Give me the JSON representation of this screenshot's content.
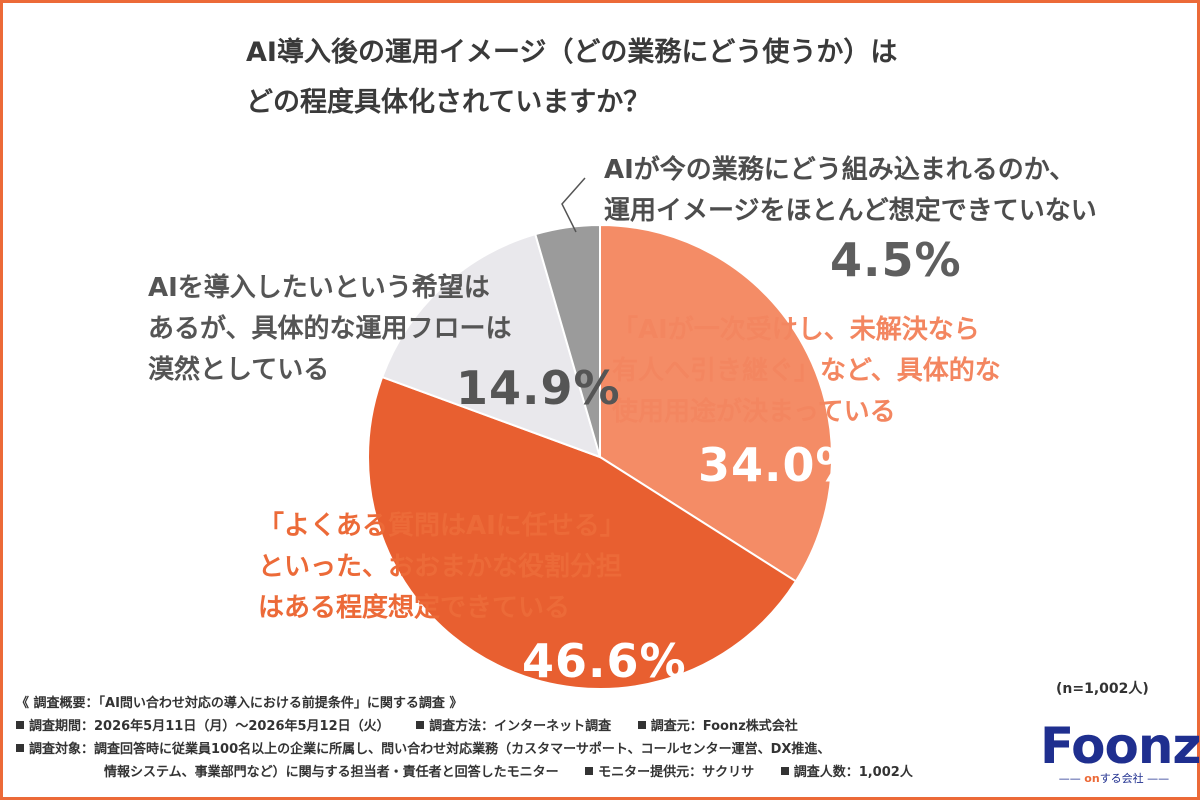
{
  "chart_data": {
    "type": "pie",
    "title_lines": [
      "AI導入後の運用イメージ（どの業務にどう使うか）は",
      "どの程度具体化されていますか？"
    ],
    "slices": [
      {
        "label_lines": [
          "「AIが一次受けし、未解決なら",
          "有人へ引き継ぐ」など、具体的な",
          "使用用途が決まっている"
        ],
        "value": 34.0,
        "value_label": "34.0%",
        "color": "#f48c66"
      },
      {
        "label_lines": [
          "「よくある質問はAIに任せる」",
          "といった、おおまかな役割分担",
          "はある程度想定できている"
        ],
        "value": 46.6,
        "value_label": "46.6%",
        "color": "#e85f30"
      },
      {
        "label_lines": [
          "AIを導入したいという希望は",
          "あるが、具体的な運用フローは",
          "漠然としている"
        ],
        "value": 14.9,
        "value_label": "14.9%",
        "color": "#e9e8ec"
      },
      {
        "label_lines": [
          "AIが今の業務にどう組み込まれるのか、",
          "運用イメージをほとんど想定できていない"
        ],
        "value": 4.5,
        "value_label": "4.5%",
        "color": "#9b9b9b"
      }
    ],
    "n_note": "(n=1,002人)"
  },
  "footer": {
    "overview": "《 調査概要：「AI問い合わせ対応の導入における前提条件」に関する調査 》",
    "period": "調査期間：2026年5月11日（月）～2026年5月12日（火）",
    "method": "調査方法：インターネット調査",
    "source": "調査元：Foonz株式会社",
    "target_1": "調査対象：調査回答時に従業員100名以上の企業に所属し、問い合わせ対応業務（カスタマーサポート、コールセンター運営、DX推進、",
    "target_2": "情報システム、事業部門など）に関与する担当者・責任者と回答したモニター",
    "provider": "モニター提供元：サクリサ",
    "count": "調査人数：1,002人"
  },
  "logo": {
    "word": "Foonz",
    "tag_on": "on",
    "tag_rest": "する会社"
  },
  "colors": {
    "frame": "#ec6a38",
    "logo": "#1f2f8f"
  }
}
